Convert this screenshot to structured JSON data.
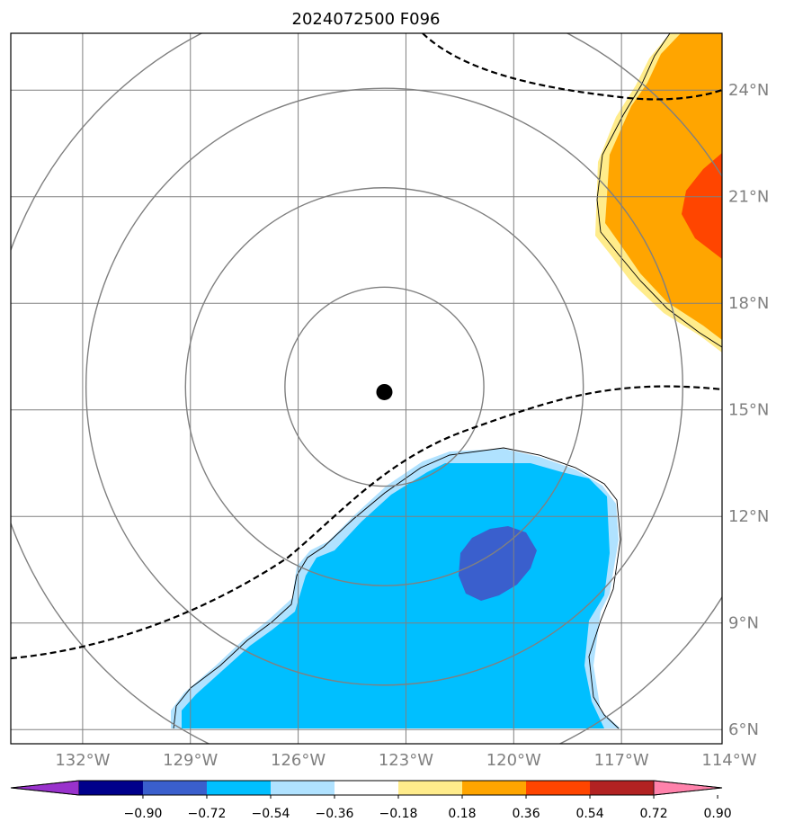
{
  "title": "2024072500 F096",
  "map": {
    "lon_range": [
      -134,
      -114.2
    ],
    "lat_range": [
      5.6,
      25.6
    ],
    "gridlines": true,
    "center_marker": {
      "lon": -123.6,
      "lat": 15.5
    },
    "range_rings_deg": [
      2.8,
      5.6,
      8.4,
      11.2
    ]
  },
  "x_ticks": [
    {
      "lon": -132,
      "label": "132°W"
    },
    {
      "lon": -129,
      "label": "129°W"
    },
    {
      "lon": -126,
      "label": "126°W"
    },
    {
      "lon": -123,
      "label": "123°W"
    },
    {
      "lon": -120,
      "label": "120°W"
    },
    {
      "lon": -117,
      "label": "117°W"
    },
    {
      "lon": -114,
      "label": "114°W"
    }
  ],
  "y_ticks": [
    {
      "lat": 24,
      "label": "24°N"
    },
    {
      "lat": 21,
      "label": "21°N"
    },
    {
      "lat": 18,
      "label": "18°N"
    },
    {
      "lat": 15,
      "label": "15°N"
    },
    {
      "lat": 12,
      "label": "12°N"
    },
    {
      "lat": 9,
      "label": "9°N"
    },
    {
      "lat": 6,
      "label": "6°N"
    }
  ],
  "colorbar": {
    "colors": [
      "#9932CC",
      "#00008B",
      "#3A5FCD",
      "#00BFFF",
      "#B0E2FF",
      "#FFFFFF",
      "#FFEC8B",
      "#FFA500",
      "#FF4500",
      "#B22222",
      "#FF82AB"
    ],
    "ticks": [
      "−0.90",
      "−0.72",
      "−0.54",
      "−0.36",
      "−0.18",
      "0.18",
      "0.36",
      "0.54",
      "0.72",
      "0.90"
    ]
  },
  "colors": {
    "grid": "#808080",
    "ring": "#808080",
    "dash": "#000000"
  }
}
